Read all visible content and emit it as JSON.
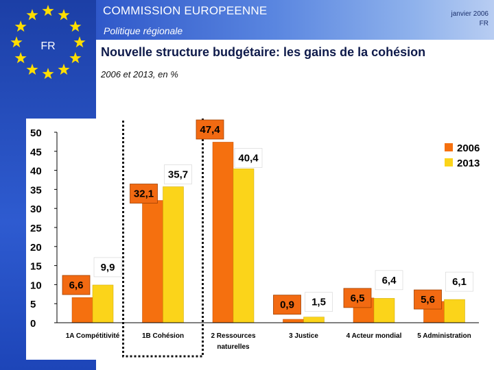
{
  "header": {
    "org": "COMMISSION EUROPEENNE",
    "dept": "Politique régionale",
    "date": "janvier 2006",
    "lang": "FR",
    "flag_label": "FR"
  },
  "slide": {
    "title": "Nouvelle structure budgétaire: les gains de la cohésion",
    "subtitle": "2006 et 2013, en %"
  },
  "colors": {
    "series_2006": "#f5700f",
    "series_2013": "#fbd41a",
    "label_box": "#f26a12",
    "highlight_border": "#111111"
  },
  "chart_data": {
    "type": "bar",
    "title": "Nouvelle structure budgétaire: les gains de la cohésion",
    "subtitle": "2006 et 2013, en %",
    "categories": [
      "1A Compétitivité",
      "1B Cohésion",
      "2 Ressources naturelles",
      "3 Justice",
      "4 Acteur mondial",
      "5 Administration"
    ],
    "series": [
      {
        "name": "2006",
        "values": [
          6.6,
          32.1,
          47.4,
          0.9,
          6.5,
          5.6
        ],
        "labels": [
          "6,6",
          "32,1",
          "47,4",
          "0,9",
          "6,5",
          "5,6"
        ]
      },
      {
        "name": "2013",
        "values": [
          9.9,
          35.7,
          40.4,
          1.5,
          6.4,
          6.1
        ],
        "labels": [
          "9,9",
          "35,7",
          "40,4",
          "1,5",
          "6,4",
          "6,1"
        ]
      }
    ],
    "ylim": [
      0,
      50
    ],
    "yticks": [
      "0",
      "5",
      "10",
      "15",
      "20",
      "25",
      "30",
      "35",
      "40",
      "45",
      "50"
    ],
    "highlighted_category": "1B Cohésion",
    "legend": "top-right"
  }
}
